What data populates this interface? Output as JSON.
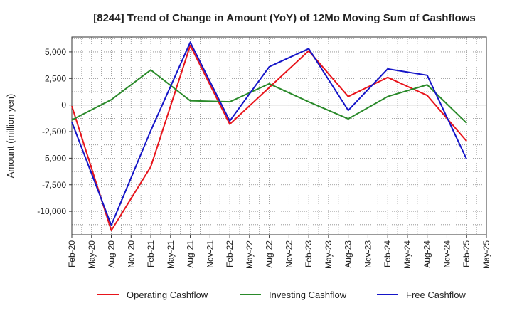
{
  "chart_data": {
    "type": "line",
    "title": "[8244]  Trend of Change in Amount (YoY) of 12Mo Moving Sum of Cashflows",
    "xlabel": "",
    "ylabel": "Amount (million yen)",
    "ylim": [
      -12200,
      6400
    ],
    "yticks": [
      5000,
      2500,
      0,
      -2500,
      -5000,
      -7500,
      -10000
    ],
    "ytick_labels": [
      "5,000",
      "2,500",
      "0",
      "-2,500",
      "-5,000",
      "-7,500",
      "-10,000"
    ],
    "categories": [
      "Feb-20",
      "May-20",
      "Aug-20",
      "Nov-20",
      "Feb-21",
      "May-21",
      "Aug-21",
      "Nov-21",
      "Feb-22",
      "May-22",
      "Aug-22",
      "Nov-22",
      "Feb-23",
      "May-23",
      "Aug-23",
      "Nov-23",
      "Feb-24",
      "May-24",
      "Aug-24",
      "Nov-24",
      "Feb-25",
      "May-25"
    ],
    "grid": true,
    "legend_position": "bottom",
    "series": [
      {
        "name": "Operating Cashflow",
        "color": "#e8141b",
        "points": [
          [
            0,
            -100
          ],
          [
            2,
            -11800
          ],
          [
            4,
            -5800
          ],
          [
            6,
            5600
          ],
          [
            8,
            -1800
          ],
          [
            12,
            5100
          ],
          [
            14,
            800
          ],
          [
            16,
            2600
          ],
          [
            18,
            900
          ],
          [
            20,
            -3400
          ]
        ]
      },
      {
        "name": "Investing Cashflow",
        "color": "#2a8a2a",
        "points": [
          [
            0,
            -1400
          ],
          [
            2,
            500
          ],
          [
            4,
            3300
          ],
          [
            6,
            400
          ],
          [
            8,
            300
          ],
          [
            10,
            2000
          ],
          [
            12,
            300
          ],
          [
            14,
            -1300
          ],
          [
            16,
            800
          ],
          [
            18,
            1900
          ],
          [
            20,
            -1700
          ]
        ]
      },
      {
        "name": "Free Cashflow",
        "color": "#1515c8",
        "points": [
          [
            0,
            -1600
          ],
          [
            2,
            -11300
          ],
          [
            4,
            -2400
          ],
          [
            6,
            5900
          ],
          [
            8,
            -1500
          ],
          [
            10,
            3600
          ],
          [
            12,
            5300
          ],
          [
            14,
            -500
          ],
          [
            16,
            3400
          ],
          [
            18,
            2800
          ],
          [
            20,
            -5100
          ]
        ]
      }
    ]
  }
}
